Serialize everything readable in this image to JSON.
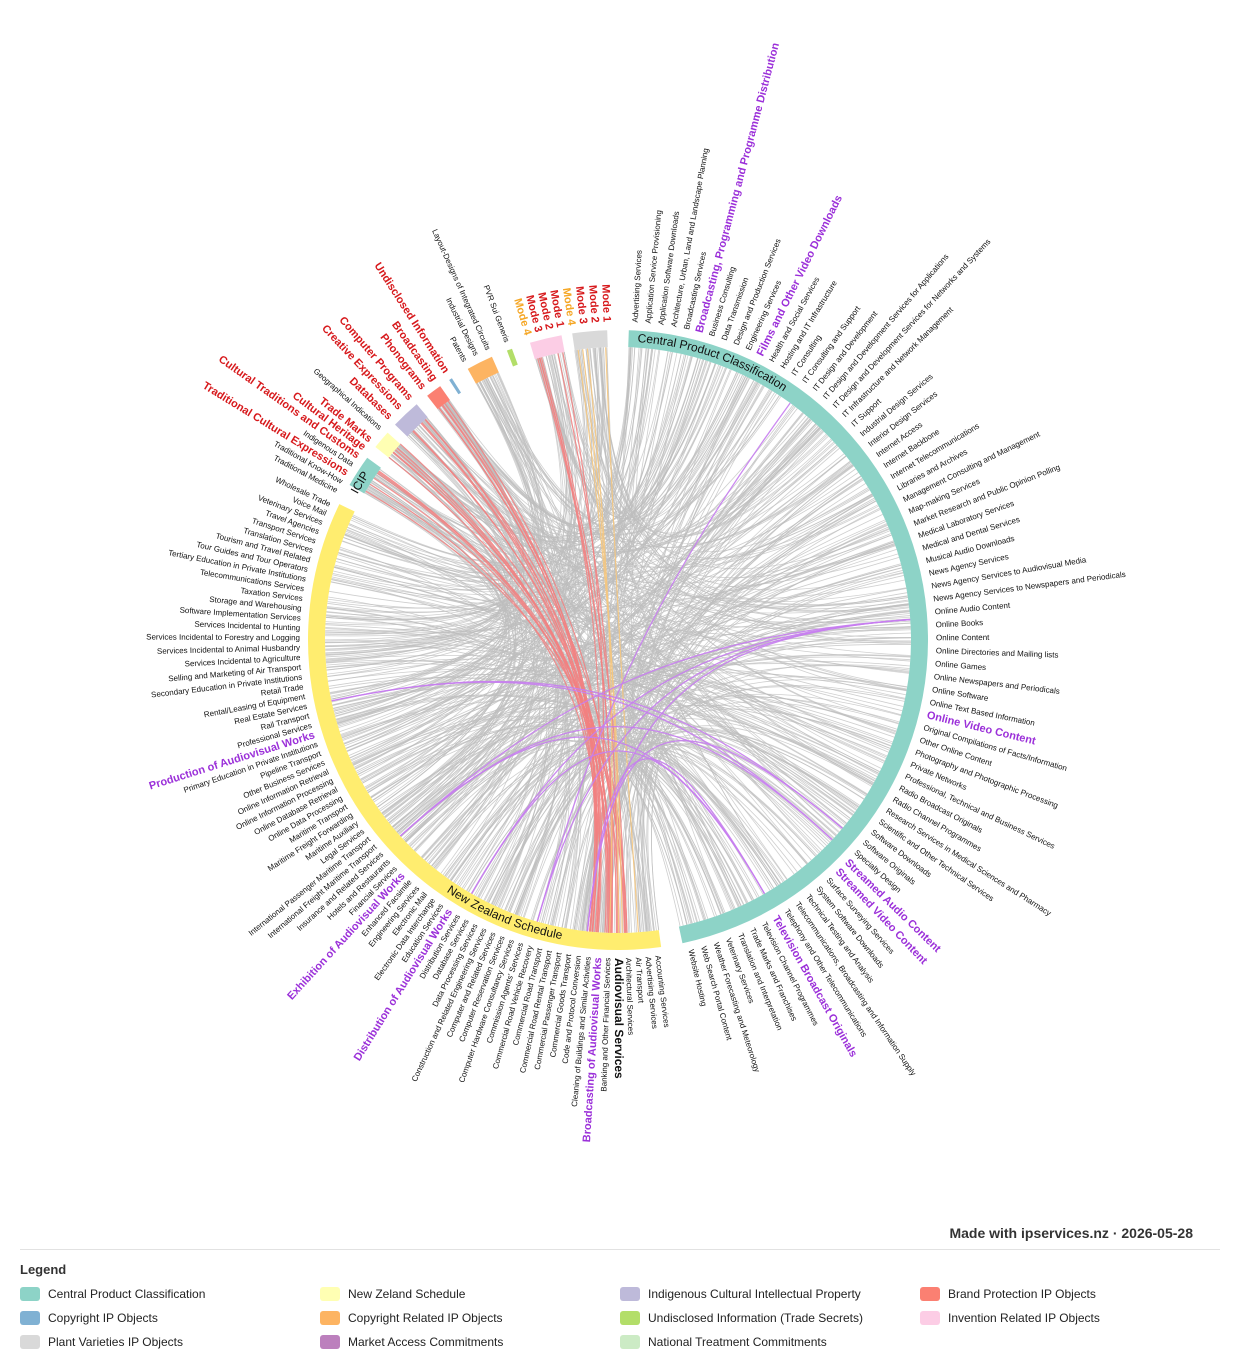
{
  "credit": "Made with ipservices.nz · 2026-05-28",
  "legend": {
    "title": "Legend",
    "items": [
      {
        "label": "Central Product Classification",
        "color": "#8dd3c7"
      },
      {
        "label": "New Zeland Schedule",
        "color": "#ffffb3"
      },
      {
        "label": "Indigenous Cultural Intellectual Property",
        "color": "#bebada"
      },
      {
        "label": "Brand Protection IP Objects",
        "color": "#fb8072"
      },
      {
        "label": "Copyright IP Objects",
        "color": "#80b1d3"
      },
      {
        "label": "Copyright Related IP Objects",
        "color": "#fdb462"
      },
      {
        "label": "Undisclosed Information (Trade Secrets)",
        "color": "#b3de69"
      },
      {
        "label": "Invention Related IP Objects",
        "color": "#fccde5"
      },
      {
        "label": "Plant Varieties IP Objects",
        "color": "#d9d9d9"
      },
      {
        "label": "Market Access Commitments",
        "color": "#bc80bd"
      },
      {
        "label": "National Treatment Commitments",
        "color": "#ccebc5"
      }
    ]
  },
  "groups": {
    "cpc": {
      "label": "Central Product Classification",
      "color": "#8dd3c7"
    },
    "nz": {
      "label": "New Zealand Schedule",
      "color": "#ffed6f"
    },
    "icip": {
      "label": "ICIP",
      "color": "#8dd3c7"
    }
  },
  "colors": {
    "link": "#bdbdbd",
    "link_ip": "#f28080",
    "link_mode": "#f5c77e",
    "link_av": "#c77df0",
    "label_red": "#d7191c",
    "label_orange": "#f5a623",
    "label_purple": "#9b30d9",
    "label_default": "#111111"
  },
  "cpc_items": [
    {
      "label": "Advertising Services"
    },
    {
      "label": "Application Service Provisioning"
    },
    {
      "label": "Application Software Downloads"
    },
    {
      "label": "Architecture, Urban, Land and Landscape Planning"
    },
    {
      "label": "Broadcasting Services"
    },
    {
      "label": "Broadcasting, Programming and Programme Distribution",
      "style": "purple"
    },
    {
      "label": "Business Consulting"
    },
    {
      "label": "Data Transmission"
    },
    {
      "label": "Design and Production Services"
    },
    {
      "label": "Engineering Services"
    },
    {
      "label": "Films and Other Video Downloads",
      "style": "purple"
    },
    {
      "label": "Health and Social Services"
    },
    {
      "label": "Hosting and IT Infrastructure"
    },
    {
      "label": "IT Consulting"
    },
    {
      "label": "IT Consulting and Support"
    },
    {
      "label": "IT Design and Development"
    },
    {
      "label": "IT Design and Development Services for Applications"
    },
    {
      "label": "IT Design and Development Services for Networks and Systems"
    },
    {
      "label": "IT Infrastructure and Network Management"
    },
    {
      "label": "IT Support"
    },
    {
      "label": "Industrial Design Services"
    },
    {
      "label": "Interior Design Services"
    },
    {
      "label": "Internet Access"
    },
    {
      "label": "Internet Backbone"
    },
    {
      "label": "Internet Telecommunications"
    },
    {
      "label": "Libraries and Archives"
    },
    {
      "label": "Management Consulting and Management"
    },
    {
      "label": "Map-making Services"
    },
    {
      "label": "Market Research and Public Opinion Polling"
    },
    {
      "label": "Medical Laboratory Services"
    },
    {
      "label": "Medical and Dental Services"
    },
    {
      "label": "Musical Audio Downloads"
    },
    {
      "label": "News Agency Services"
    },
    {
      "label": "News Agency Services to Audiovisual Media"
    },
    {
      "label": "News Agency Services to Newspapers and Periodicals"
    },
    {
      "label": "Online Audio Content"
    },
    {
      "label": "Online Books"
    },
    {
      "label": "Online Content"
    },
    {
      "label": "Online Directories and Mailing lists"
    },
    {
      "label": "Online Games"
    },
    {
      "label": "Online Newspapers and Periodicals"
    },
    {
      "label": "Online Software"
    },
    {
      "label": "Online Text Based Information"
    },
    {
      "label": "Online Video Content",
      "style": "purple"
    },
    {
      "label": "Original Compilations of Facts/Information"
    },
    {
      "label": "Other Online Content"
    },
    {
      "label": "Photography and Photographic Processing"
    },
    {
      "label": "Private Networks"
    },
    {
      "label": "Professional, Technical and Business Services"
    },
    {
      "label": "Radio Broadcast Originals"
    },
    {
      "label": "Radio Channel Programmes"
    },
    {
      "label": "Research Services in Medical Sciences and Pharmacy"
    },
    {
      "label": "Scientific and Other Technical Services"
    },
    {
      "label": "Software Downloads"
    },
    {
      "label": "Software Originals"
    },
    {
      "label": "Specialty Design"
    },
    {
      "label": "Streamed Audio Content",
      "style": "purple"
    },
    {
      "label": "Streamed Video Content",
      "style": "purple"
    },
    {
      "label": "Surface Surveying Services"
    },
    {
      "label": "System Software Downloads"
    },
    {
      "label": "Technical Testing and Analysis"
    },
    {
      "label": "Telecommunications, Broadcasting and Information Supply"
    },
    {
      "label": "Telephony and Other Telecommunications"
    },
    {
      "label": "Television Broadcast Originals",
      "style": "purple"
    },
    {
      "label": "Television Channel Programmes"
    },
    {
      "label": "Trade Marks and Franchises"
    },
    {
      "label": "Translation and Interpretation"
    },
    {
      "label": "Veterinary Services"
    },
    {
      "label": "Weather Forecasting and Meteorology"
    },
    {
      "label": "Web Search Portal Content"
    },
    {
      "label": "Website Hosting"
    }
  ],
  "nz_items": [
    {
      "label": "Accounting Services"
    },
    {
      "label": "Advertising Services"
    },
    {
      "label": "Air Transport"
    },
    {
      "label": "Architectural Services"
    },
    {
      "label": "Audiovisual Services",
      "style": "bold"
    },
    {
      "label": "Banking and Other Financial Services"
    },
    {
      "label": "Broadcasting of Audiovisual Works",
      "style": "purple"
    },
    {
      "label": "Cleaning of Buildings and Similar Activities"
    },
    {
      "label": "Code and Protocol Conversion"
    },
    {
      "label": "Commercial Goods Transport"
    },
    {
      "label": "Commercial Passenger Transport"
    },
    {
      "label": "Commercial Road Rental Transport"
    },
    {
      "label": "Commercial Road Transport"
    },
    {
      "label": "Commercial Road Vehicle Recovery"
    },
    {
      "label": "Commission Agents' Services"
    },
    {
      "label": "Computer Hardware Consultancy Services"
    },
    {
      "label": "Computer Reservation Services"
    },
    {
      "label": "Computer and Related Services"
    },
    {
      "label": "Construction and Related Engineering Services"
    },
    {
      "label": "Data Processing Services"
    },
    {
      "label": "Database Services"
    },
    {
      "label": "Distribution Services"
    },
    {
      "label": "Distribution of Audiovisual Works",
      "style": "purple"
    },
    {
      "label": "Education Services"
    },
    {
      "label": "Electronic Data Interchange"
    },
    {
      "label": "Electronic Mail"
    },
    {
      "label": "Engineering Services"
    },
    {
      "label": "Enhanced Facsimile"
    },
    {
      "label": "Exhibition of Audiovisual Works",
      "style": "purple"
    },
    {
      "label": "Financial Services"
    },
    {
      "label": "Hotels and Restaurants"
    },
    {
      "label": "Insurance and Related Services"
    },
    {
      "label": "International Freight Maritime Transport"
    },
    {
      "label": "International Passenger Maritime Transport"
    },
    {
      "label": "Legal Services"
    },
    {
      "label": "Maritime Auxiliary"
    },
    {
      "label": "Maritime Freight Forwarding"
    },
    {
      "label": "Maritime Transport"
    },
    {
      "label": "Online Data Processing"
    },
    {
      "label": "Online Database Retrieval"
    },
    {
      "label": "Online Information Processing"
    },
    {
      "label": "Online Information Retrieval"
    },
    {
      "label": "Other Business Services"
    },
    {
      "label": "Pipeline Transport"
    },
    {
      "label": "Primary Education in Private Institutions"
    },
    {
      "label": "Production of Audiovisual Works",
      "style": "purple"
    },
    {
      "label": "Professional Services"
    },
    {
      "label": "Rail Transport"
    },
    {
      "label": "Real Estate Services"
    },
    {
      "label": "Rental/Leasing of Equipment"
    },
    {
      "label": "Retail Trade"
    },
    {
      "label": "Secondary Education in Private Institutions"
    },
    {
      "label": "Selling and Marketing of Air Transport"
    },
    {
      "label": "Services Incidental to Agriculture"
    },
    {
      "label": "Services Incidental to Animal Husbandry"
    },
    {
      "label": "Services Incidental to Forestry and Logging"
    },
    {
      "label": "Services Incidental to Hunting"
    },
    {
      "label": "Software Implementation Services"
    },
    {
      "label": "Storage and Warehousing"
    },
    {
      "label": "Taxation Services"
    },
    {
      "label": "Telecommunications Services"
    },
    {
      "label": "Tertiary Education in Private Institutions"
    },
    {
      "label": "Tour Guides and Tour Operators"
    },
    {
      "label": "Tourism and Travel Related"
    },
    {
      "label": "Translation Services"
    },
    {
      "label": "Transport Services"
    },
    {
      "label": "Travel Agencies"
    },
    {
      "label": "Veterinary Services"
    },
    {
      "label": "Voice Mail"
    },
    {
      "label": "Wholesale Trade"
    }
  ],
  "icip_items": [
    {
      "label": "Cultural Heritage",
      "style": "red"
    },
    {
      "label": "Cultural Traditions and Customs",
      "style": "red"
    },
    {
      "label": "Indigenous Data"
    },
    {
      "label": "Traditional Cultural Expressions",
      "style": "red"
    },
    {
      "label": "Traditional Know-How"
    },
    {
      "label": "Traditional Medicine"
    }
  ],
  "small_groups": [
    {
      "id": "g1",
      "color": "#ffffb3",
      "items": [
        {
          "label": "Geographical Indications"
        },
        {
          "label": "Trade Marks",
          "style": "red"
        }
      ]
    },
    {
      "id": "g2",
      "color": "#bebada",
      "items": [
        {
          "label": "Computer Programs",
          "style": "red"
        },
        {
          "label": "Creative Expressions",
          "style": "red"
        },
        {
          "label": "Databases",
          "style": "red"
        }
      ]
    },
    {
      "id": "g3",
      "color": "#fb8072",
      "items": [
        {
          "label": "Broadcasting",
          "style": "red"
        },
        {
          "label": "Phonograms",
          "style": "red"
        }
      ]
    },
    {
      "id": "g4",
      "color": "#80b1d3",
      "items": [
        {
          "label": "Undisclosed Information",
          "style": "red"
        }
      ]
    },
    {
      "id": "g5",
      "color": "#fdb462",
      "items": [
        {
          "label": "Layout-Designs of Integrated Circuits"
        },
        {
          "label": "Industrial Designs"
        },
        {
          "label": "Patents"
        }
      ]
    },
    {
      "id": "g6",
      "color": "#b3de69",
      "items": [
        {
          "label": "PVR Sui Generis"
        }
      ]
    },
    {
      "id": "g7",
      "color": "#fccde5",
      "items": [
        {
          "label": "Mode 1",
          "style": "red"
        },
        {
          "label": "Mode 2",
          "style": "red"
        },
        {
          "label": "Mode 3",
          "style": "red"
        },
        {
          "label": "Mode 4",
          "style": "orange"
        }
      ]
    },
    {
      "id": "g8",
      "color": "#d9d9d9",
      "items": [
        {
          "label": "Mode 1",
          "style": "red"
        },
        {
          "label": "Mode 2",
          "style": "red"
        },
        {
          "label": "Mode 3",
          "style": "red"
        },
        {
          "label": "Mode 4",
          "style": "orange"
        }
      ]
    }
  ]
}
